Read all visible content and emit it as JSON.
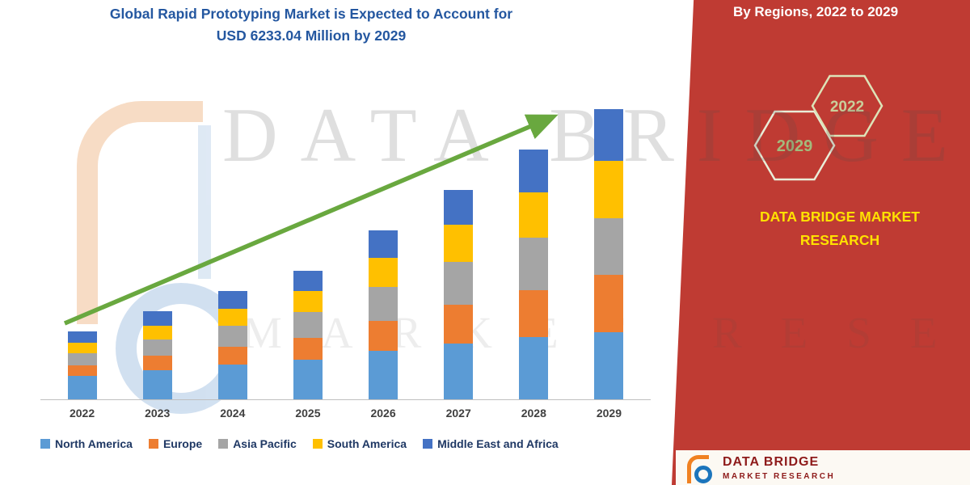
{
  "title": {
    "line1": "Global Rapid Prototyping Market is Expected to Account for",
    "line2": "USD 6233.04 Million by 2029"
  },
  "side_panel": {
    "heading": "By Regions, 2022 to 2029",
    "hexagons": [
      {
        "label": "2022"
      },
      {
        "label": "2029"
      }
    ],
    "brand_line1": "DATA BRIDGE MARKET",
    "brand_line2": "RESEARCH"
  },
  "watermark": {
    "line1": "DATA BRIDGE",
    "line2": "MARKET RESEARCH"
  },
  "footer_logo": {
    "text": "DATA BRIDGE",
    "subtext": "MARKET RESEARCH"
  },
  "colors": {
    "panel_red": "#BF3B33",
    "brand_yellow": "#FFE100",
    "arrow_green": "#69A83F",
    "title_blue": "#2457A0"
  },
  "chart_data": {
    "type": "bar",
    "stacked": true,
    "title": "Global Rapid Prototyping Market is Expected to Account for USD 6233.04 Million by 2029",
    "unit": "USD Million",
    "categories": [
      "2022",
      "2023",
      "2024",
      "2025",
      "2026",
      "2027",
      "2028",
      "2029"
    ],
    "series": [
      {
        "name": "North America",
        "color": "#5B9BD5",
        "values": [
          520,
          640,
          760,
          860,
          1060,
          1220,
          1350,
          1450
        ]
      },
      {
        "name": "Europe",
        "color": "#ED7D31",
        "values": [
          230,
          310,
          390,
          480,
          640,
          820,
          1010,
          1240
        ]
      },
      {
        "name": "Asia Pacific",
        "color": "#A5A5A5",
        "values": [
          260,
          350,
          440,
          540,
          730,
          920,
          1120,
          1200
        ]
      },
      {
        "name": "South America",
        "color": "#FFC000",
        "values": [
          220,
          290,
          370,
          450,
          620,
          790,
          970,
          1230
        ]
      },
      {
        "name": "Middle East and Africa",
        "color": "#4472C4",
        "values": [
          240,
          310,
          380,
          440,
          590,
          750,
          920,
          1113.04
        ]
      }
    ],
    "totals": [
      1470,
      1900,
      2340,
      2770,
      3640,
      4500,
      5370,
      6233.04
    ],
    "final_year_total": 6233.04,
    "legend_position": "bottom",
    "grid": false,
    "trend_arrow": true
  }
}
